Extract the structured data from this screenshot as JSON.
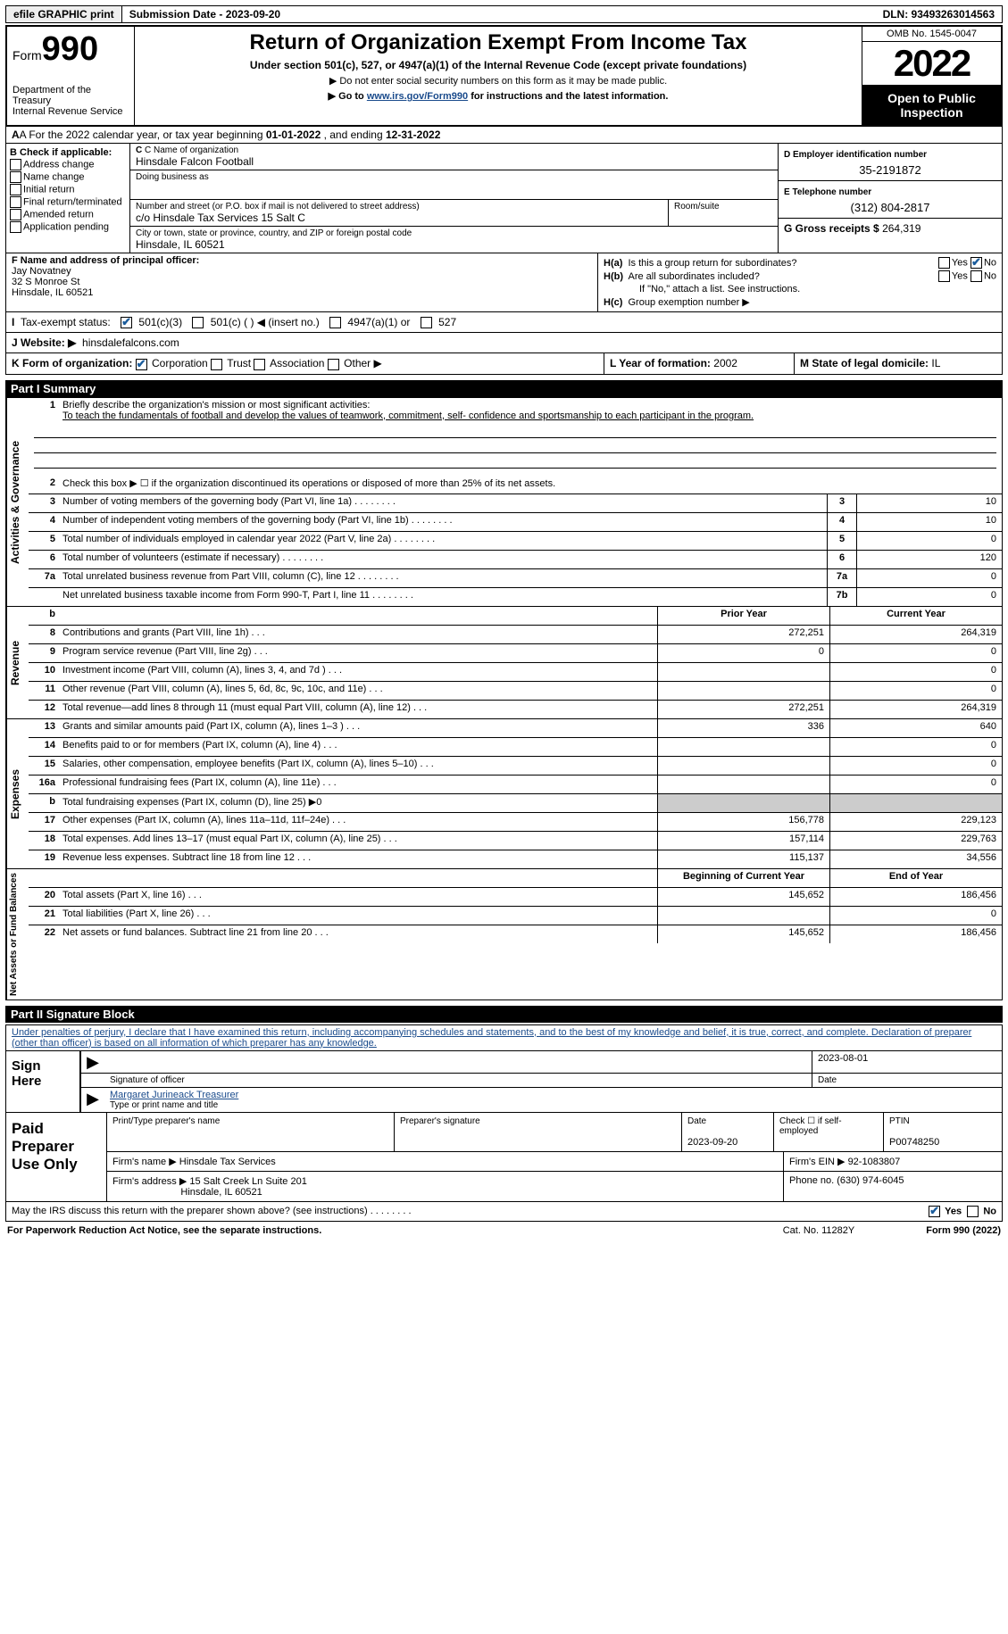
{
  "topbar": {
    "efile": "efile GRAPHIC print",
    "submission_label": "Submission Date - 2023-09-20",
    "dln": "DLN: 93493263014563"
  },
  "header": {
    "form_word": "Form",
    "form_num": "990",
    "dept": "Department of the Treasury",
    "irs": "Internal Revenue Service",
    "title": "Return of Organization Exempt From Income Tax",
    "sub1": "Under section 501(c), 527, or 4947(a)(1) of the Internal Revenue Code (except private foundations)",
    "sub2": "▶ Do not enter social security numbers on this form as it may be made public.",
    "sub3_pre": "▶ Go to ",
    "sub3_link": "www.irs.gov/Form990",
    "sub3_post": " for instructions and the latest information.",
    "omb": "OMB No. 1545-0047",
    "year": "2022",
    "otp": "Open to Public Inspection"
  },
  "row_a": {
    "text_pre": "A For the 2022 calendar year, or tax year beginning ",
    "begin": "01-01-2022",
    "text_mid": "   , and ending ",
    "end": "12-31-2022"
  },
  "col_b": {
    "label": "B Check if applicable:",
    "opts": [
      "Address change",
      "Name change",
      "Initial return",
      "Final return/terminated",
      "Amended return",
      "Application pending"
    ]
  },
  "col_c": {
    "name_label": "C Name of organization",
    "name": "Hinsdale Falcon Football",
    "dba_label": "Doing business as",
    "street_label": "Number and street (or P.O. box if mail is not delivered to street address)",
    "street": "c/o Hinsdale Tax Services 15 Salt C",
    "room_label": "Room/suite",
    "city_label": "City or town, state or province, country, and ZIP or foreign postal code",
    "city": "Hinsdale, IL  60521"
  },
  "col_d": {
    "ein_label": "D Employer identification number",
    "ein": "35-2191872",
    "tel_label": "E Telephone number",
    "tel": "(312) 804-2817",
    "gross_label": "G Gross receipts $",
    "gross": "264,319"
  },
  "col_f": {
    "label": "F  Name and address of principal officer:",
    "name": "Jay Novatney",
    "addr1": "32 S Monroe St",
    "addr2": "Hinsdale, IL  60521"
  },
  "col_h": {
    "ha_label": "H(a)  Is this a group return for subordinates?",
    "hb_label": "H(b)  Are all subordinates included?",
    "hb_note": "If \"No,\" attach a list. See instructions.",
    "hc_label": "H(c)  Group exemption number ▶",
    "yes": "Yes",
    "no": "No"
  },
  "row_i": {
    "label": "I  Tax-exempt status:",
    "opt1": "501(c)(3)",
    "opt2": "501(c) (  ) ◀ (insert no.)",
    "opt3": "4947(a)(1) or",
    "opt4": "527"
  },
  "row_j": {
    "label": "J  Website: ▶",
    "val": "hinsdalefalcons.com"
  },
  "row_k": {
    "label": "K Form of organization:",
    "opts": [
      "Corporation",
      "Trust",
      "Association",
      "Other ▶"
    ]
  },
  "row_l": {
    "label": "L Year of formation:",
    "val": "2002"
  },
  "row_m": {
    "label": "M State of legal domicile:",
    "val": "IL"
  },
  "part1": {
    "header": "Part I      Summary",
    "line1_label": "Briefly describe the organization's mission or most significant activities:",
    "line1_val": "To teach the fundamentals of football and develop the values of teamwork, commitment, self- confidence and sportsmanship to each participant in the program.",
    "line2": "Check this box ▶ ☐  if the organization discontinued its operations or disposed of more than 25% of its net assets.",
    "governance_label": "Activities & Governance",
    "revenue_label": "Revenue",
    "expenses_label": "Expenses",
    "netassets_label": "Net Assets or Fund Balances",
    "prior_year": "Prior Year",
    "current_year": "Current Year",
    "begin_year": "Beginning of Current Year",
    "end_year": "End of Year",
    "rows_gov": [
      {
        "n": "3",
        "d": "Number of voting members of the governing body (Part VI, line 1a)",
        "box": "3",
        "v": "10"
      },
      {
        "n": "4",
        "d": "Number of independent voting members of the governing body (Part VI, line 1b)",
        "box": "4",
        "v": "10"
      },
      {
        "n": "5",
        "d": "Total number of individuals employed in calendar year 2022 (Part V, line 2a)",
        "box": "5",
        "v": "0"
      },
      {
        "n": "6",
        "d": "Total number of volunteers (estimate if necessary)",
        "box": "6",
        "v": "120"
      },
      {
        "n": "7a",
        "d": "Total unrelated business revenue from Part VIII, column (C), line 12",
        "box": "7a",
        "v": "0"
      },
      {
        "n": "",
        "d": "Net unrelated business taxable income from Form 990-T, Part I, line 11",
        "box": "7b",
        "v": "0"
      }
    ],
    "rows_rev": [
      {
        "n": "8",
        "d": "Contributions and grants (Part VIII, line 1h)",
        "p": "272,251",
        "c": "264,319"
      },
      {
        "n": "9",
        "d": "Program service revenue (Part VIII, line 2g)",
        "p": "0",
        "c": "0"
      },
      {
        "n": "10",
        "d": "Investment income (Part VIII, column (A), lines 3, 4, and 7d )",
        "p": "",
        "c": "0"
      },
      {
        "n": "11",
        "d": "Other revenue (Part VIII, column (A), lines 5, 6d, 8c, 9c, 10c, and 11e)",
        "p": "",
        "c": "0"
      },
      {
        "n": "12",
        "d": "Total revenue—add lines 8 through 11 (must equal Part VIII, column (A), line 12)",
        "p": "272,251",
        "c": "264,319"
      }
    ],
    "rows_exp": [
      {
        "n": "13",
        "d": "Grants and similar amounts paid (Part IX, column (A), lines 1–3 )",
        "p": "336",
        "c": "640"
      },
      {
        "n": "14",
        "d": "Benefits paid to or for members (Part IX, column (A), line 4)",
        "p": "",
        "c": "0"
      },
      {
        "n": "15",
        "d": "Salaries, other compensation, employee benefits (Part IX, column (A), lines 5–10)",
        "p": "",
        "c": "0"
      },
      {
        "n": "16a",
        "d": "Professional fundraising fees (Part IX, column (A), line 11e)",
        "p": "",
        "c": "0"
      },
      {
        "n": "b",
        "d": "Total fundraising expenses (Part IX, column (D), line 25) ▶0",
        "p": "shaded",
        "c": "shaded"
      },
      {
        "n": "17",
        "d": "Other expenses (Part IX, column (A), lines 11a–11d, 11f–24e)",
        "p": "156,778",
        "c": "229,123"
      },
      {
        "n": "18",
        "d": "Total expenses. Add lines 13–17 (must equal Part IX, column (A), line 25)",
        "p": "157,114",
        "c": "229,763"
      },
      {
        "n": "19",
        "d": "Revenue less expenses. Subtract line 18 from line 12",
        "p": "115,137",
        "c": "34,556"
      }
    ],
    "rows_net": [
      {
        "n": "20",
        "d": "Total assets (Part X, line 16)",
        "p": "145,652",
        "c": "186,456"
      },
      {
        "n": "21",
        "d": "Total liabilities (Part X, line 26)",
        "p": "",
        "c": "0"
      },
      {
        "n": "22",
        "d": "Net assets or fund balances. Subtract line 21 from line 20",
        "p": "145,652",
        "c": "186,456"
      }
    ]
  },
  "part2": {
    "header": "Part II      Signature Block",
    "penalties": "Under penalties of perjury, I declare that I have examined this return, including accompanying schedules and statements, and to the best of my knowledge and belief, it is true, correct, and complete. Declaration of preparer (other than officer) is based on all information of which preparer has any knowledge.",
    "sign_here": "Sign Here",
    "sig_officer": "Signature of officer",
    "sig_date_label": "Date",
    "sig_date": "2023-08-01",
    "sig_name": "Margaret Jurineack  Treasurer",
    "sig_type": "Type or print name and title",
    "paid_label": "Paid Preparer Use Only",
    "prep_name_label": "Print/Type preparer's name",
    "prep_sig_label": "Preparer's signature",
    "prep_date_label": "Date",
    "prep_date": "2023-09-20",
    "check_if": "Check ☐ if self-employed",
    "ptin_label": "PTIN",
    "ptin": "P00748250",
    "firm_name_label": "Firm's name    ▶",
    "firm_name": "Hinsdale Tax Services",
    "firm_ein_label": "Firm's EIN ▶",
    "firm_ein": "92-1083807",
    "firm_addr_label": "Firm's address ▶",
    "firm_addr1": "15 Salt Creek Ln Suite 201",
    "firm_addr2": "Hinsdale, IL  60521",
    "phone_label": "Phone no.",
    "phone": "(630) 974-6045",
    "discuss": "May the IRS discuss this return with the preparer shown above? (see instructions)",
    "yes": "Yes",
    "no": "No"
  },
  "footer": {
    "left": "For Paperwork Reduction Act Notice, see the separate instructions.",
    "mid": "Cat. No. 11282Y",
    "right": "Form 990 (2022)"
  },
  "dots": "   .     .     .     .     .     .     .     ."
}
